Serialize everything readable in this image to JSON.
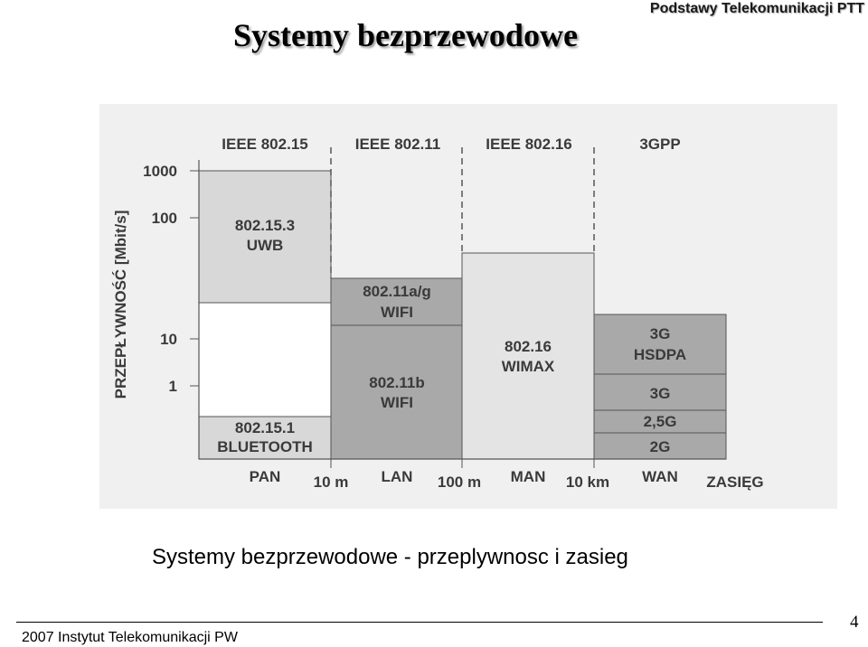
{
  "header": {
    "title": "Systemy bezprzewodowe",
    "course": "Podstawy Telekomunikacji PTT"
  },
  "diagram": {
    "y_axis_label": "PRZEPŁYWNOŚĆ [Mbit/s]",
    "y_ticks": [
      "1000",
      "100",
      "10",
      "1"
    ],
    "standards": [
      "IEEE 802.15",
      "IEEE 802.11",
      "IEEE 802.16",
      "3GPP"
    ],
    "networks": [
      "PAN",
      "LAN",
      "MAN",
      "WAN"
    ],
    "ranges": [
      "10 m",
      "100 m",
      "10 km"
    ],
    "x_axis_label": "ZASIĘG",
    "boxes": {
      "uwb": [
        "802.15.3",
        "UWB"
      ],
      "bluetooth": [
        "802.15.1",
        "BLUETOOTH"
      ],
      "wifi_ag": [
        "802.11a/g",
        "WIFI"
      ],
      "wifi_b": [
        "802.11b",
        "WIFI"
      ],
      "wimax": [
        "802.16",
        "WIMAX"
      ],
      "hsdpa": [
        "3G",
        "HSDPA"
      ],
      "g3": "3G",
      "g25": "2,5G",
      "g2": "2G"
    },
    "colors": {
      "background": "#f0f0f0",
      "light_box": "#d8d8d8",
      "medium_box": "#e4e4e4",
      "dark_box": "#a9a9a9",
      "white_box": "#ffffff",
      "text": "#3a3a3a"
    }
  },
  "caption": "Systemy bezprzewodowe - przeplywnosc i zasieg",
  "footer": {
    "text": "2007  Instytut Telekomunikacji PW",
    "page": "4"
  }
}
